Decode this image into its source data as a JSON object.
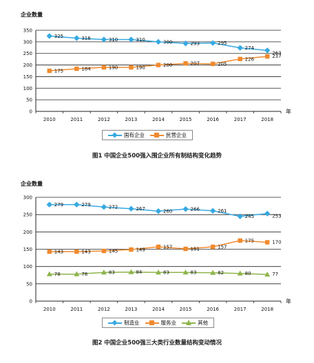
{
  "colors": {
    "diamond": "#36A9E1",
    "square": "#F08A2E",
    "triangle": "#8DB44A",
    "axis": "#222222",
    "grid": "#222222"
  },
  "chart_data": [
    {
      "type": "line",
      "ylabel": "企业数量",
      "xunit": "年",
      "categories": [
        "2010",
        "2011",
        "2012",
        "2013",
        "2014",
        "2015",
        "2016",
        "2017",
        "2018"
      ],
      "ylim": [
        0,
        350
      ],
      "yticks": [
        0,
        50,
        100,
        150,
        200,
        250,
        300,
        350
      ],
      "grid": true,
      "legend_position": "bottom",
      "caption": "图1 中国企业500强入围企业所有制结构变化趋势",
      "series": [
        {
          "name": "国有企业",
          "marker": "diamond",
          "values": [
            325,
            316,
            310,
            310,
            300,
            293,
            295,
            274,
            263
          ]
        },
        {
          "name": "民营企业",
          "marker": "square",
          "values": [
            175,
            184,
            190,
            190,
            200,
            207,
            205,
            226,
            237
          ]
        }
      ]
    },
    {
      "type": "line",
      "ylabel": "企业数量",
      "xunit": "年",
      "categories": [
        "2010",
        "2011",
        "2012",
        "2013",
        "2014",
        "2015",
        "2016",
        "2017",
        "2018"
      ],
      "ylim": [
        0,
        300
      ],
      "yticks": [
        0,
        50,
        100,
        150,
        200,
        250,
        300
      ],
      "grid": true,
      "legend_position": "bottom",
      "caption": "图2 中国企业500强三大类行业数量结构变动情况",
      "series": [
        {
          "name": "制造业",
          "marker": "diamond",
          "values": [
            279,
            279,
            272,
            267,
            260,
            266,
            261,
            245,
            253
          ]
        },
        {
          "name": "服务业",
          "marker": "square",
          "values": [
            143,
            143,
            145,
            149,
            157,
            151,
            157,
            175,
            170
          ]
        },
        {
          "name": "其他",
          "marker": "triangle",
          "values": [
            78,
            78,
            83,
            84,
            83,
            83,
            82,
            80,
            77
          ]
        }
      ]
    }
  ]
}
